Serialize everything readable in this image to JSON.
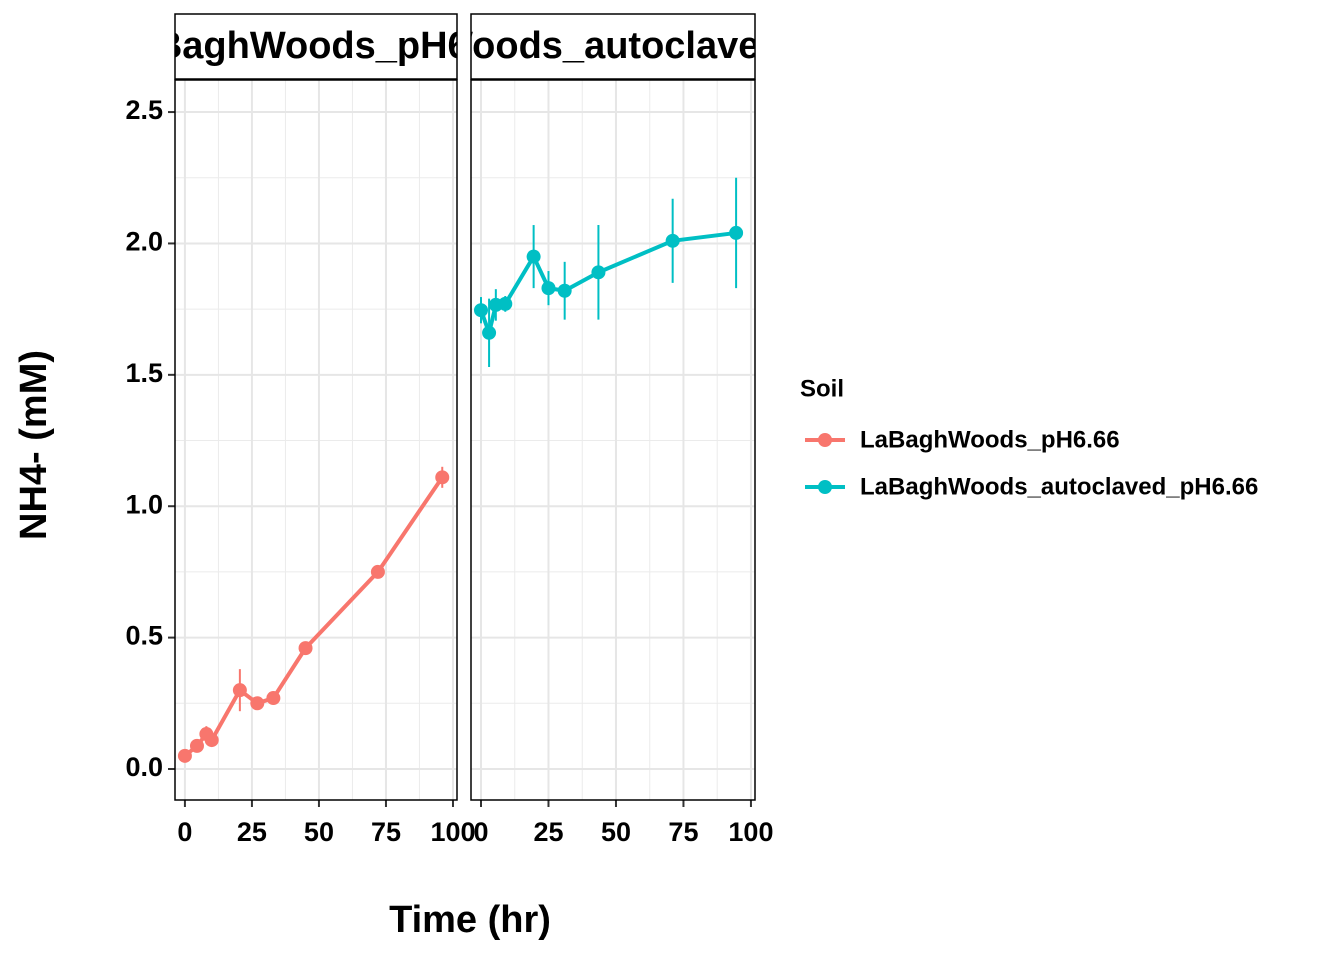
{
  "chart_data": {
    "type": "line",
    "x_label": "Time (hr)",
    "y_label": "NH4- (mM)",
    "legend_title": "Soil",
    "xlim": [
      -3.7,
      101.5
    ],
    "ylim": [
      -0.118,
      2.622
    ],
    "xticks": [
      0,
      25,
      50,
      75,
      100
    ],
    "yticks": [
      {
        "value": 0,
        "label": "0.0"
      },
      0.5,
      {
        "value": 1,
        "label": "1.0"
      },
      1.5,
      {
        "value": 2,
        "label": "2.0"
      },
      2.5
    ],
    "grid": true,
    "series": [
      {
        "name": "LaBaghWoods_pH6.66",
        "color": "#F8766D",
        "x": [
          0,
          4.5,
          8,
          10,
          20.5,
          27,
          33,
          45,
          72,
          96
        ],
        "values": [
          0.05,
          0.088,
          0.133,
          0.11,
          0.3,
          0.25,
          0.27,
          0.46,
          0.75,
          1.11
        ],
        "errors": [
          0.01,
          0.01,
          0.03,
          0.01,
          0.08,
          0.01,
          0.01,
          0.01,
          0.01,
          0.04
        ]
      },
      {
        "name": "LaBaghWoods_autoclaved_pH6.66",
        "color": "#00BFC4",
        "x": [
          0,
          3,
          5.5,
          9,
          19.5,
          25,
          31,
          43.5,
          71,
          94.5
        ],
        "values": [
          1.746,
          1.66,
          1.766,
          1.77,
          1.95,
          1.83,
          1.82,
          1.89,
          2.01,
          2.04
        ],
        "errors": [
          0.05,
          0.13,
          0.06,
          0.03,
          0.12,
          0.065,
          0.11,
          0.18,
          0.16,
          0.21
        ]
      }
    ]
  }
}
